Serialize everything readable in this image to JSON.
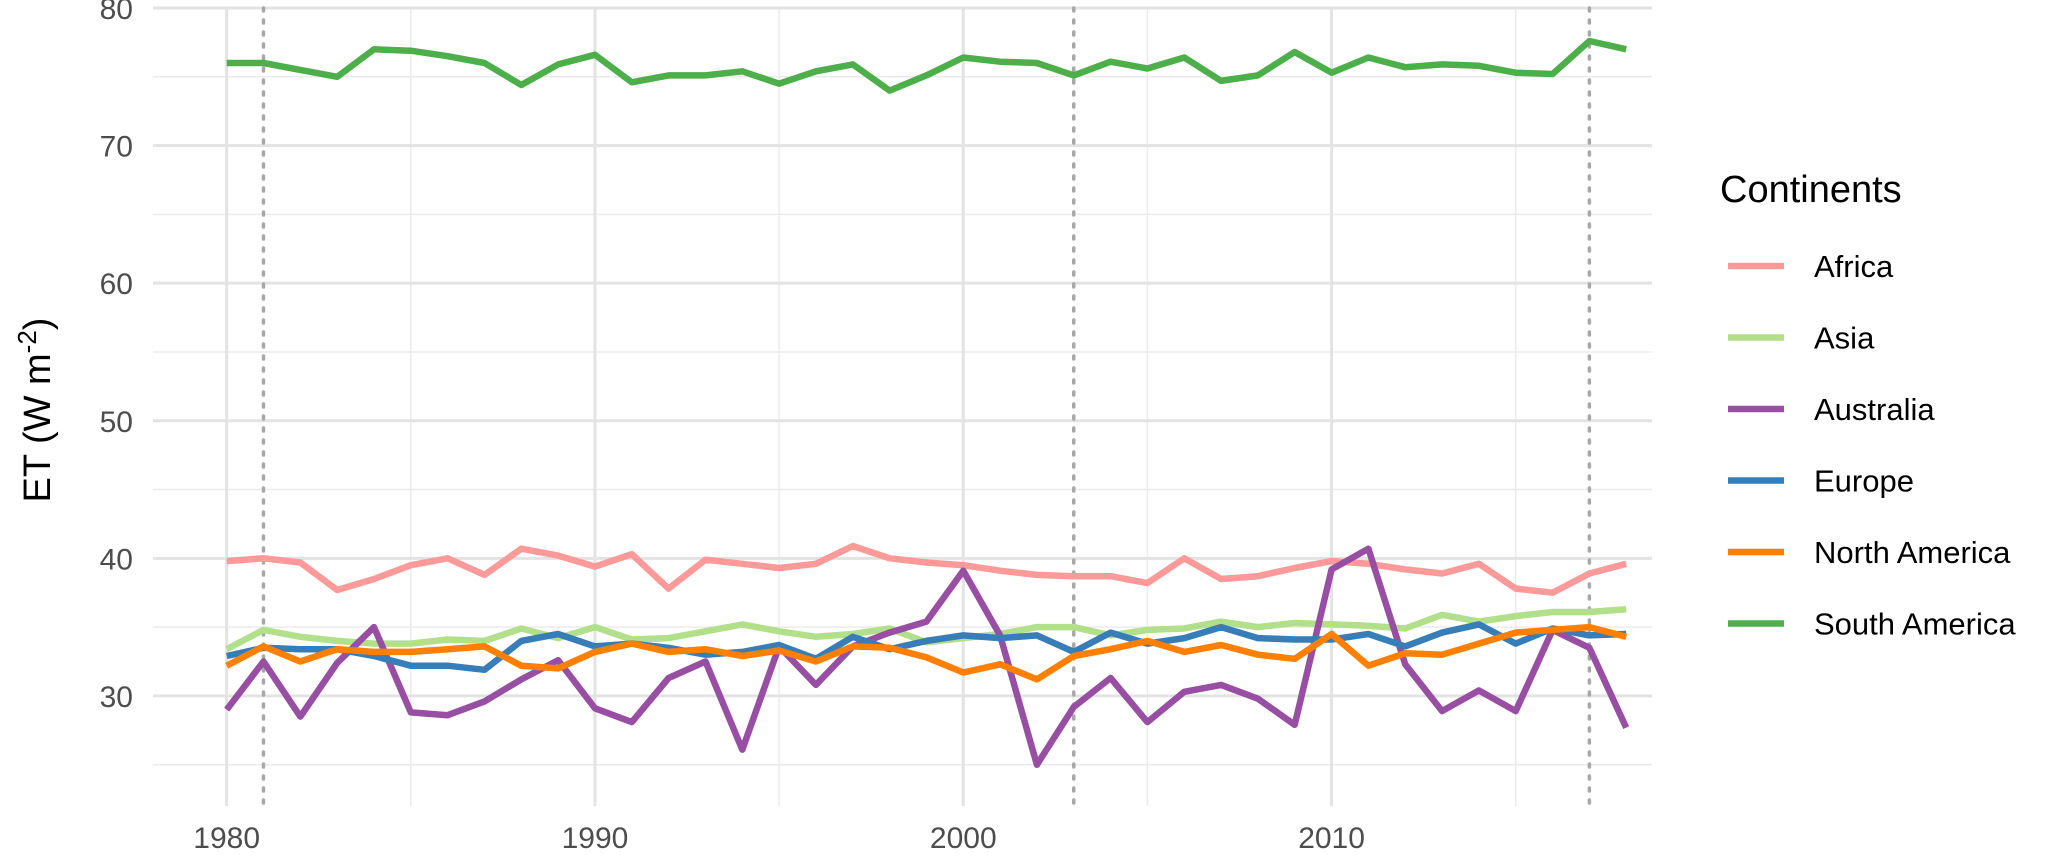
{
  "chart_data": {
    "type": "line",
    "xlabel": "",
    "ylabel": "ET (W m",
    "ylabel_sup": "-2",
    "ylabel_close": ")",
    "xlim": [
      1978,
      2018.7
    ],
    "ylim": [
      22,
      80
    ],
    "xticks": [
      1980,
      1990,
      2000,
      2010
    ],
    "yticks": [
      30,
      40,
      50,
      60,
      70,
      80
    ],
    "vlines": [
      1981,
      2003,
      2017
    ],
    "grid": true,
    "legend": {
      "title": "Continents",
      "position": "right"
    },
    "x": [
      1980,
      1981,
      1982,
      1983,
      1984,
      1985,
      1986,
      1987,
      1988,
      1989,
      1990,
      1991,
      1992,
      1993,
      1994,
      1995,
      1996,
      1997,
      1998,
      1999,
      2000,
      2001,
      2002,
      2003,
      2004,
      2005,
      2006,
      2007,
      2008,
      2009,
      2010,
      2011,
      2012,
      2013,
      2014,
      2015,
      2016,
      2017,
      2018
    ],
    "series": [
      {
        "name": "Africa",
        "color": "#FB9A99",
        "values": [
          39.8,
          40.0,
          39.7,
          37.7,
          38.5,
          39.5,
          40.0,
          38.8,
          40.7,
          40.2,
          39.4,
          40.3,
          37.8,
          39.9,
          39.6,
          39.3,
          39.6,
          40.9,
          40.0,
          39.7,
          39.5,
          39.1,
          38.8,
          38.7,
          38.7,
          38.2,
          40.0,
          38.5,
          38.7,
          39.3,
          39.8,
          39.6,
          39.2,
          38.9,
          39.6,
          37.8,
          37.5,
          38.9,
          39.6
        ]
      },
      {
        "name": "Asia",
        "color": "#B2DF8A",
        "values": [
          33.4,
          34.8,
          34.3,
          34.0,
          33.8,
          33.8,
          34.1,
          34.0,
          34.9,
          34.2,
          35.0,
          34.1,
          34.2,
          34.7,
          35.2,
          34.7,
          34.3,
          34.5,
          34.9,
          33.9,
          34.2,
          34.5,
          35.0,
          35.0,
          34.4,
          34.8,
          34.9,
          35.4,
          35.0,
          35.3,
          35.2,
          35.1,
          34.9,
          35.9,
          35.4,
          35.8,
          36.1,
          36.1,
          36.3
        ]
      },
      {
        "name": "Australia",
        "color": "#984EA3",
        "values": [
          29.0,
          32.5,
          28.5,
          32.4,
          35.0,
          28.8,
          28.6,
          29.6,
          31.2,
          32.6,
          29.1,
          28.1,
          31.3,
          32.5,
          26.1,
          33.6,
          30.8,
          33.6,
          34.6,
          35.4,
          39.1,
          34.4,
          25.0,
          29.2,
          31.3,
          28.1,
          30.3,
          30.8,
          29.8,
          27.9,
          39.2,
          40.7,
          32.3,
          28.9,
          30.4,
          28.9,
          34.8,
          33.5,
          27.7
        ]
      },
      {
        "name": "Europe",
        "color": "#377EB8",
        "values": [
          32.9,
          33.5,
          33.4,
          33.4,
          32.9,
          32.2,
          32.2,
          31.9,
          34.0,
          34.5,
          33.6,
          33.8,
          33.5,
          33.0,
          33.2,
          33.7,
          32.7,
          34.3,
          33.4,
          34.0,
          34.4,
          34.2,
          34.4,
          33.2,
          34.6,
          33.8,
          34.2,
          35.0,
          34.2,
          34.1,
          34.1,
          34.5,
          33.6,
          34.6,
          35.2,
          33.8,
          34.9,
          34.4,
          34.5
        ]
      },
      {
        "name": "North America",
        "color": "#FF7F00",
        "values": [
          32.2,
          33.6,
          32.5,
          33.4,
          33.2,
          33.2,
          33.4,
          33.6,
          32.2,
          32.0,
          33.2,
          33.8,
          33.2,
          33.4,
          32.9,
          33.3,
          32.5,
          33.6,
          33.5,
          32.8,
          31.7,
          32.3,
          31.2,
          32.9,
          33.4,
          34.0,
          33.2,
          33.7,
          33.0,
          32.7,
          34.5,
          32.2,
          33.1,
          33.0,
          33.8,
          34.6,
          34.8,
          35.0,
          34.3
        ]
      },
      {
        "name": "South America",
        "color": "#4DAF4A",
        "values": [
          76.0,
          76.0,
          75.5,
          75.0,
          77.0,
          76.9,
          76.5,
          76.0,
          74.4,
          75.9,
          76.6,
          74.6,
          75.1,
          75.1,
          75.4,
          74.5,
          75.4,
          75.9,
          74.0,
          75.1,
          76.4,
          76.1,
          76.0,
          75.1,
          76.1,
          75.6,
          76.4,
          74.7,
          75.1,
          76.8,
          75.3,
          76.4,
          75.7,
          75.9,
          75.8,
          75.3,
          75.2,
          77.6,
          77.0
        ]
      }
    ]
  }
}
